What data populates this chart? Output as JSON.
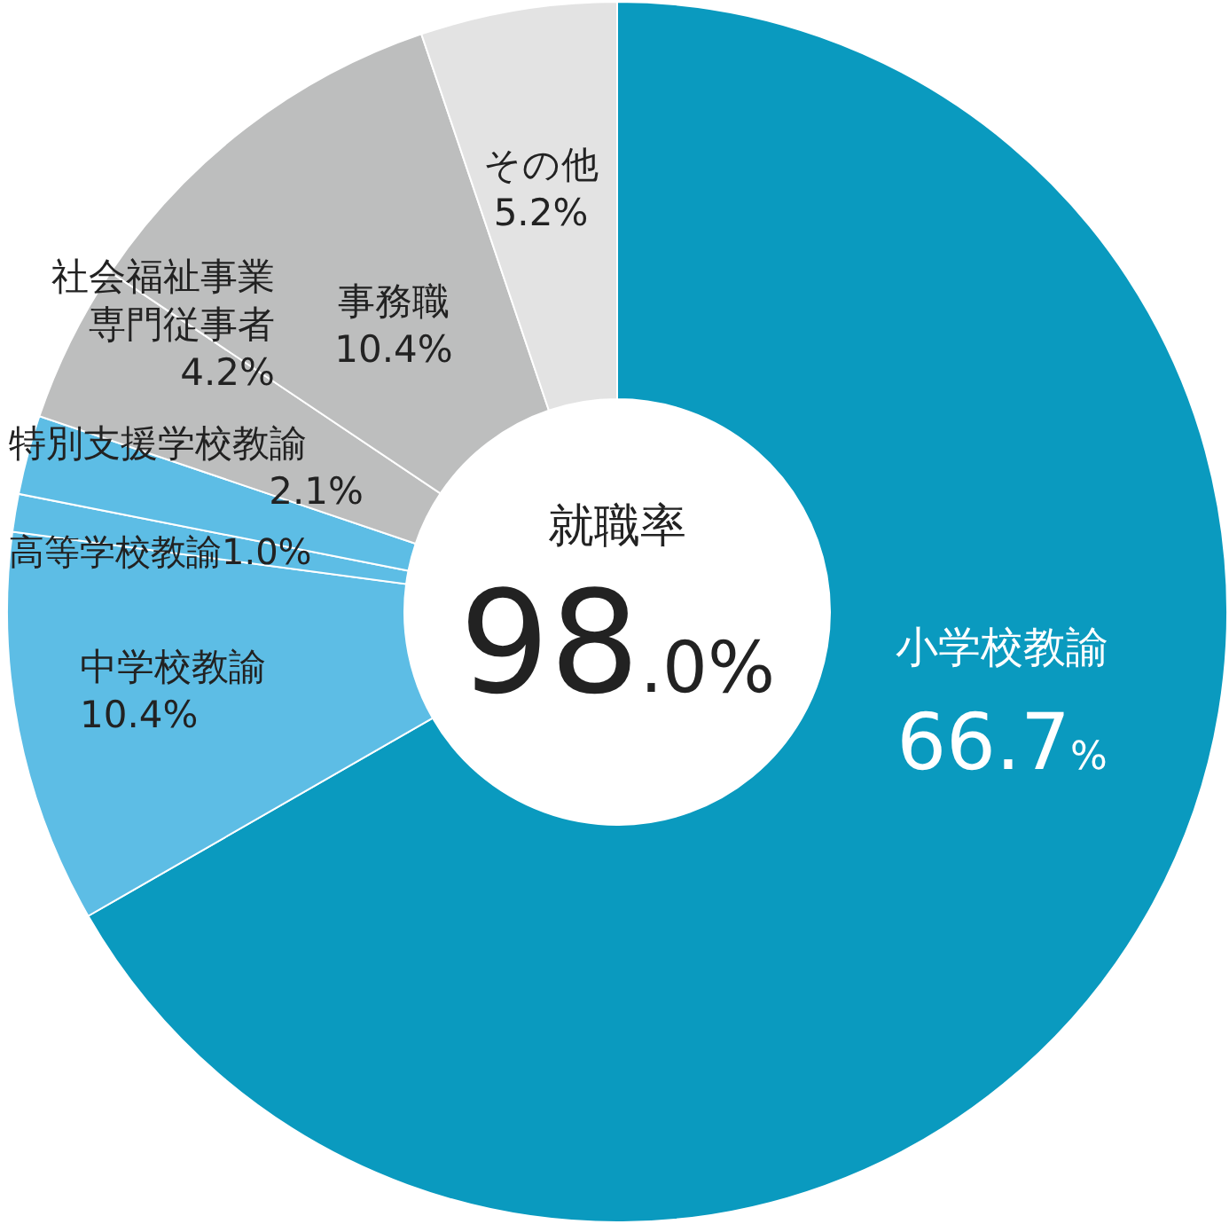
{
  "chart_data": {
    "type": "donut",
    "title": "就職率",
    "subtitle": "98.0%",
    "categories": [
      "小学校教諭",
      "中学校教諭",
      "高等学校教諭",
      "特別支援学校教諭",
      "社会福祉事業専門従事者",
      "事務職",
      "その他"
    ],
    "value_labels": [
      "66.7%",
      "10.4%",
      "1.0%",
      "2.1%",
      "4.2%",
      "10.4%",
      "5.2%"
    ],
    "values": [
      66.7,
      10.4,
      1.0,
      2.1,
      4.2,
      10.4,
      5.2
    ],
    "colors": [
      "#0a9abf",
      "#5dbde5",
      "#5dbde5",
      "#5dbde5",
      "#bdbebe",
      "#bdbebe",
      "#e3e3e3"
    ],
    "data_labels": false
  }
}
